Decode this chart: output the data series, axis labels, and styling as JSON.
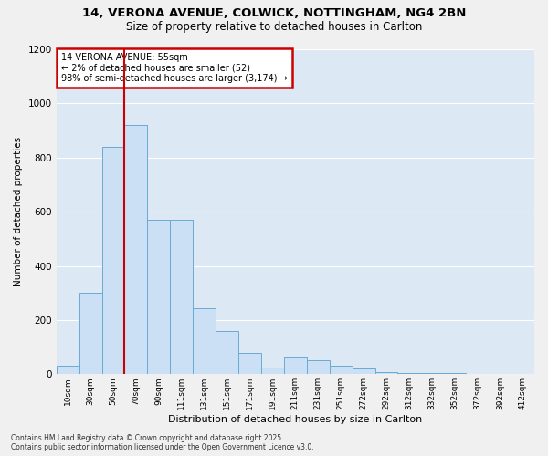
{
  "title1": "14, VERONA AVENUE, COLWICK, NOTTINGHAM, NG4 2BN",
  "title2": "Size of property relative to detached houses in Carlton",
  "xlabel": "Distribution of detached houses by size in Carlton",
  "ylabel": "Number of detached properties",
  "categories": [
    "10sqm",
    "30sqm",
    "50sqm",
    "70sqm",
    "90sqm",
    "111sqm",
    "131sqm",
    "151sqm",
    "171sqm",
    "191sqm",
    "211sqm",
    "231sqm",
    "251sqm",
    "272sqm",
    "292sqm",
    "312sqm",
    "332sqm",
    "352sqm",
    "372sqm",
    "392sqm",
    "412sqm"
  ],
  "values": [
    30,
    300,
    840,
    920,
    570,
    570,
    245,
    160,
    80,
    25,
    65,
    50,
    30,
    20,
    8,
    5,
    3,
    3,
    2,
    1,
    1
  ],
  "bar_color": "#cce0f5",
  "bar_edge_color": "#6aaad4",
  "vline_color": "#cc0000",
  "vline_x": 2.5,
  "annotation_text": "14 VERONA AVENUE: 55sqm\n← 2% of detached houses are smaller (52)\n98% of semi-detached houses are larger (3,174) →",
  "annotation_box_color": "#ffffff",
  "annotation_box_edge": "#cc0000",
  "footer1": "Contains HM Land Registry data © Crown copyright and database right 2025.",
  "footer2": "Contains public sector information licensed under the Open Government Licence v3.0.",
  "plot_bg_color": "#dce9f5",
  "fig_bg_color": "#f0f0f0",
  "ylim": [
    0,
    1200
  ],
  "yticks": [
    0,
    200,
    400,
    600,
    800,
    1000,
    1200
  ],
  "grid_color": "#ffffff",
  "title1_fontsize": 9.5,
  "title2_fontsize": 8.5
}
